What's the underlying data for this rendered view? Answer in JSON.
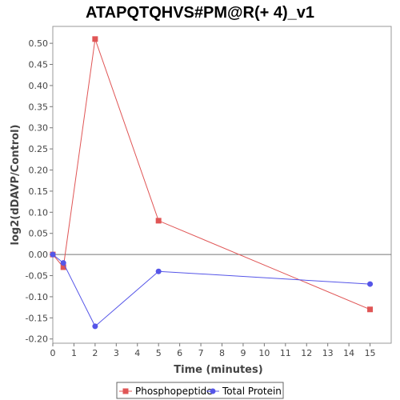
{
  "chart_data": {
    "type": "line",
    "title": "ATAPQTQHVS#PM@R(+ 4)_v1",
    "xlabel": "Time (minutes)",
    "ylabel": "log2(dDAVP/Control)",
    "xlim": [
      0,
      16
    ],
    "ylim": [
      -0.21,
      0.54
    ],
    "xticks": [
      0,
      1,
      2,
      3,
      4,
      5,
      6,
      7,
      8,
      9,
      10,
      11,
      12,
      13,
      14,
      15
    ],
    "yticks": [
      -0.2,
      -0.15,
      -0.1,
      -0.05,
      0.0,
      0.05,
      0.1,
      0.15,
      0.2,
      0.25,
      0.3,
      0.35,
      0.4,
      0.45,
      0.5
    ],
    "ytick_labels": [
      "-0.20",
      "-0.15",
      "-0.10",
      "-0.05",
      "0.00",
      "0.05",
      "0.10",
      "0.15",
      "0.20",
      "0.25",
      "0.30",
      "0.35",
      "0.40",
      "0.45",
      "0.50"
    ],
    "zero_line": 0,
    "legend_position": "bottom",
    "series": [
      {
        "name": "Phosphopeptide",
        "color": "#e05555",
        "marker": "square",
        "x": [
          0,
          0.5,
          2,
          5,
          15
        ],
        "y": [
          0.0,
          -0.03,
          0.51,
          0.08,
          -0.13
        ]
      },
      {
        "name": "Total Protein",
        "color": "#5555e8",
        "marker": "circle",
        "x": [
          0,
          0.5,
          2,
          5,
          15
        ],
        "y": [
          0.0,
          -0.02,
          -0.17,
          -0.04,
          -0.07
        ]
      }
    ]
  }
}
